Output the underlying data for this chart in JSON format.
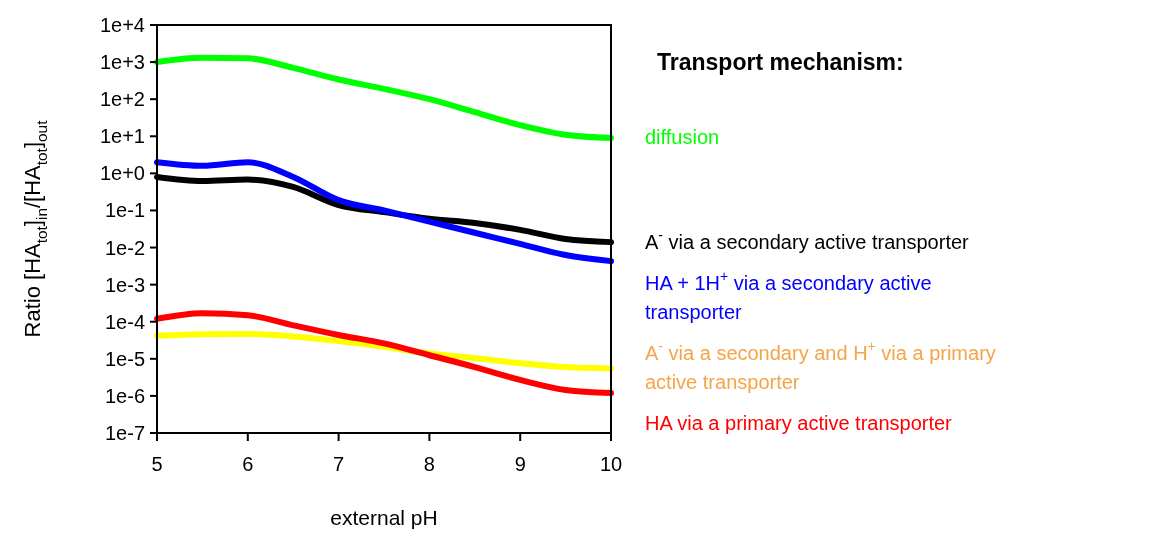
{
  "chart_data": {
    "type": "line",
    "xlabel": "external pH",
    "ylabel": "Ratio [HA$_{tot}$]$_{in}$/[HA$_{tot}$]$_{out}$",
    "legend_title": "Transport mechanism:",
    "log": "y",
    "grid": false,
    "legend": "right",
    "marker": "none",
    "line_style": "solid",
    "x": [
      5,
      5.5,
      6,
      6.5,
      7,
      7.5,
      8,
      8.5,
      9,
      9.5,
      10
    ],
    "xlim": [
      5,
      10
    ],
    "xticks": [
      5,
      6,
      7,
      8,
      9,
      10
    ],
    "ylim": [
      1e-07,
      10000
    ],
    "yticks": [
      {
        "value": 1e-07,
        "label": "1e-7"
      },
      {
        "value": 1e-06,
        "label": "1e-6"
      },
      {
        "value": 1e-05,
        "label": "1e-5"
      },
      {
        "value": 0.0001,
        "label": "1e-4"
      },
      {
        "value": 0.001,
        "label": "1e-3"
      },
      {
        "value": 0.01,
        "label": "1e-2"
      },
      {
        "value": 0.1,
        "label": "1e-1"
      },
      {
        "value": 1,
        "label": "1e+0"
      },
      {
        "value": 10,
        "label": "1e+1"
      },
      {
        "value": 100,
        "label": "1e+2"
      },
      {
        "value": 1000,
        "label": "1e+3"
      },
      {
        "value": 10000,
        "label": "1e+4"
      }
    ],
    "series": [
      {
        "name": "diffusion",
        "color": "#00ff00",
        "values": [
          1000,
          1300,
          1260,
          700,
          340,
          190,
          100,
          45,
          20,
          11,
          9
        ]
      },
      {
        "name": "A$^{-}$ via a secondary active transporter",
        "color": "#000000",
        "values": [
          0.8,
          0.62,
          0.68,
          0.43,
          0.14,
          0.09,
          0.06,
          0.046,
          0.03,
          0.017,
          0.014
        ]
      },
      {
        "name": "HA + 1H$^{+}$ via a secondary active transporter",
        "color": "#0000ff",
        "values": [
          2.0,
          1.6,
          2.0,
          0.8,
          0.19,
          0.1,
          0.05,
          0.025,
          0.0126,
          0.0063,
          0.0043
        ]
      },
      {
        "name": "A$^{-}$ via a secondary and H$^{+}$ via a primary active transporter",
        "color": "#ffff00",
        "values": [
          4.2e-05,
          4.6e-05,
          4.7e-05,
          4e-05,
          3e-05,
          2.1e-05,
          1.4e-05,
          1.05e-05,
          7.6e-06,
          6e-06,
          5.5e-06
        ]
      },
      {
        "name": "HA via a primary active transporter",
        "color": "#ff0000",
        "values": [
          0.00012,
          0.00017,
          0.00015,
          8e-05,
          4.4e-05,
          2.6e-05,
          1.25e-05,
          6e-06,
          2.7e-06,
          1.45e-06,
          1.2e-06
        ]
      }
    ]
  }
}
